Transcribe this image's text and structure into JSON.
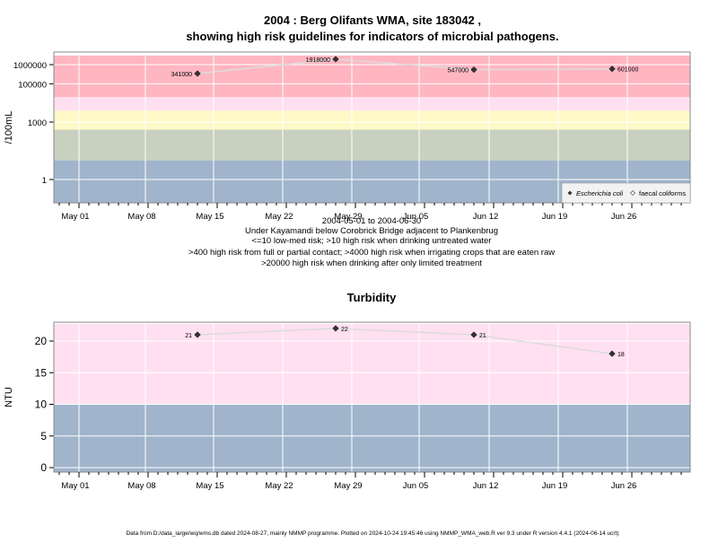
{
  "title_line1": "2004 : Berg Olifants WMA, site 183042 ,",
  "title_line2": "showing high risk guidelines for indicators of microbial pathogens.",
  "x_tick_labels": [
    "May 01",
    "May 08",
    "May 15",
    "May 22",
    "May 29",
    "Jun 05",
    "Jun 12",
    "Jun 19",
    "Jun 26"
  ],
  "subtitle_lines": [
    "2004-05-01 to 2004-06-30",
    "Under Kayamandi below Corobrick Bridge adjacent to Plankenbrug",
    "<=10 low-med risk; >10 high risk when drinking untreated water",
    ">400 high risk from full or partial contact; >4000 high risk when irrigating crops that are eaten raw",
    ">20000 high risk when drinking after only limited treatment"
  ],
  "footer": "Data from D:/data_large/wq/wms.db dated 2024-08-27, mainly NMMP programme. Plotted on 2024-10-24 19:45:46 using NMMP_WMA_web.R ver 9.3 under R version 4.4.1 (2024-06-14 ucrt)",
  "colors": {
    "band_red": "#ffb6c1",
    "band_pink": "#ffe0f0",
    "band_yellow": "#fff9c8",
    "band_grey": "#c8d0c0",
    "band_blue": "#a0b4cc",
    "grid": "#ffffff",
    "line": "#dcdcdc",
    "point": "#333333"
  },
  "chart_data": [
    {
      "type": "line",
      "ylabel": "/100mL",
      "y_scale": "log",
      "y_tick_labels": [
        "1",
        "1000",
        "100000",
        "1000000"
      ],
      "bands": [
        {
          "from": 0.05,
          "to": 10,
          "color": "band_blue"
        },
        {
          "from": 10,
          "to": 400,
          "color": "band_grey"
        },
        {
          "from": 400,
          "to": 4000,
          "color": "band_yellow"
        },
        {
          "from": 4000,
          "to": 20000,
          "color": "band_pink"
        },
        {
          "from": 20000,
          "to": 3000000,
          "color": "band_red"
        }
      ],
      "legend": {
        "position": "bottom-right",
        "entries": [
          "Escherichia coli",
          "faecal coliforms"
        ]
      },
      "series": [
        {
          "name": "Escherichia coli",
          "x": [
            "2004-05-13",
            "2004-05-27",
            "2004-06-10",
            "2004-06-24"
          ],
          "values": [
            341000,
            1918000,
            547000,
            601000
          ],
          "labels": [
            "341000",
            "1918000",
            "547000",
            "601000"
          ]
        }
      ]
    },
    {
      "type": "line",
      "title": "Turbidity",
      "ylabel": "NTU",
      "ylim": [
        -0.7,
        22.7
      ],
      "y_tick_labels": [
        "0",
        "5",
        "10",
        "15",
        "20"
      ],
      "bands": [
        {
          "from": -0.7,
          "to": 10,
          "color": "band_blue"
        },
        {
          "from": 10,
          "to": 22.7,
          "color": "band_pink"
        }
      ],
      "series": [
        {
          "name": "Turbidity",
          "x": [
            "2004-05-13",
            "2004-05-27",
            "2004-06-10",
            "2004-06-24"
          ],
          "values": [
            21,
            22,
            21,
            18
          ],
          "labels": [
            "21",
            "22",
            "21",
            "18"
          ]
        }
      ]
    }
  ]
}
